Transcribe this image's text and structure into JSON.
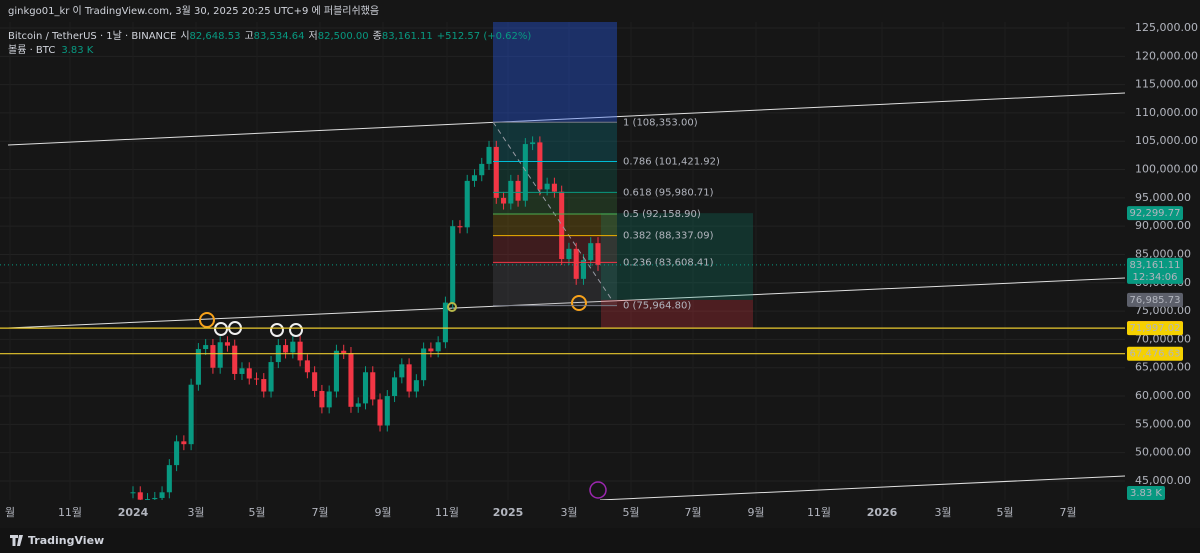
{
  "header": {
    "publisher": "ginkgo01_kr 이 TradingView.com, 3월 30, 2025 20:25 UTC+9 에 퍼블리쉬했음"
  },
  "legend": {
    "symbol": "Bitcoin / TetherUS · 1날 · BINANCE",
    "ohlc": [
      {
        "label": "시",
        "value": "82,648.53"
      },
      {
        "label": "고",
        "value": "83,534.64"
      },
      {
        "label": "저",
        "value": "82,500.00"
      },
      {
        "label": "종",
        "value": "83,161.11"
      }
    ],
    "change": "+512.57 (+0.62%)",
    "volume_label": "볼륨 · BTC",
    "volume": "3.83 K"
  },
  "chart_data": {
    "type": "candlestick",
    "closes": [
      43000,
      41700,
      41800,
      42000,
      43000,
      47800,
      52000,
      51500,
      62000,
      68300,
      69000,
      65000,
      69500,
      68900,
      63900,
      64900,
      63100,
      63000,
      60800,
      66000,
      69000,
      67700,
      69600,
      66300,
      64200,
      60900,
      58000,
      60800,
      68000,
      67600,
      58100,
      58700,
      64200,
      59400,
      54800,
      60000,
      63300,
      65600,
      60800,
      62800,
      68400,
      67900,
      69500,
      76500,
      90000,
      89800,
      98000,
      99000,
      101000,
      104000,
      95000,
      94000,
      98000,
      94500,
      104500,
      104800,
      96500,
      97500,
      96100,
      84200,
      86000,
      80700,
      84000,
      87000,
      83161.11
    ],
    "up_color": "#089981",
    "down_color": "#f23645",
    "ylim": [
      41640,
      126060
    ],
    "yticks": [
      {
        "value": 45000,
        "label": "45,000.00"
      },
      {
        "value": 50000,
        "label": "50,000.00"
      },
      {
        "value": 55000,
        "label": "55,000.00"
      },
      {
        "value": 60000,
        "label": "60,000.00"
      },
      {
        "value": 65000,
        "label": "65,000.00"
      },
      {
        "value": 70000,
        "label": "70,000.00"
      },
      {
        "value": 75000,
        "label": "75,000.00"
      },
      {
        "value": 80000,
        "label": "80,000.00"
      },
      {
        "value": 85000,
        "label": "85,000.00"
      },
      {
        "value": 90000,
        "label": "90,000.00"
      },
      {
        "value": 95000,
        "label": "95,000.00"
      },
      {
        "value": 100000,
        "label": "100,000.00"
      },
      {
        "value": 105000,
        "label": "105,000.00"
      },
      {
        "value": 110000,
        "label": "110,000.00"
      },
      {
        "value": 115000,
        "label": "115,000.00"
      },
      {
        "value": 120000,
        "label": "120,000.00"
      },
      {
        "value": 125000,
        "label": "125,000.00"
      }
    ],
    "xtick_labels": [
      "월",
      "11월",
      "2024",
      "3월",
      "5월",
      "7월",
      "9월",
      "11월",
      "2025",
      "3월",
      "5월",
      "7월",
      "9월",
      "11월",
      "2026",
      "3월",
      "5월",
      "7월"
    ],
    "fib_levels": [
      {
        "text": "1 (108,353.00)",
        "price": 108353.0,
        "color": "#787b86"
      },
      {
        "text": "0.786 (101,421.92)",
        "price": 101421.92,
        "color": "#00bcd4"
      },
      {
        "text": "0.618 (95,980.71)",
        "price": 95980.71,
        "color": "#089981"
      },
      {
        "text": "0.5 (92,158.90)",
        "price": 92158.9,
        "color": "#4caf50"
      },
      {
        "text": "0.382 (88,337.09)",
        "price": 88337.09,
        "color": "#f0b000"
      },
      {
        "text": "0.236 (83,608.41)",
        "price": 83608.41,
        "color": "#f23645"
      },
      {
        "text": "0 (75,964.80)",
        "price": 75964.8,
        "color": "#787b86"
      }
    ],
    "price_lines": [
      {
        "value": 71997.02,
        "color": "#e8c82e"
      },
      {
        "value": 67476.63,
        "color": "#e8c82e"
      }
    ],
    "price_tags": [
      {
        "value": 92299.77,
        "label": "92,299.77",
        "color": "#089981"
      },
      {
        "value": 83161.11,
        "label": "83,161.11",
        "sub": "12:34:06",
        "color": "#089981"
      },
      {
        "value": 76985.73,
        "label": "76,985.73",
        "color": "#5d606b"
      },
      {
        "value": 72026.9,
        "label": "72,026.90",
        "color": "#f23645"
      },
      {
        "value": 71997.02,
        "label": "71,997.02",
        "color": "#f5d100"
      },
      {
        "value": 67476.63,
        "label": "67,476.63",
        "color": "#f5d100"
      }
    ],
    "volume_tag": "3.83 K"
  },
  "footer": {
    "brand": "TradingView"
  }
}
